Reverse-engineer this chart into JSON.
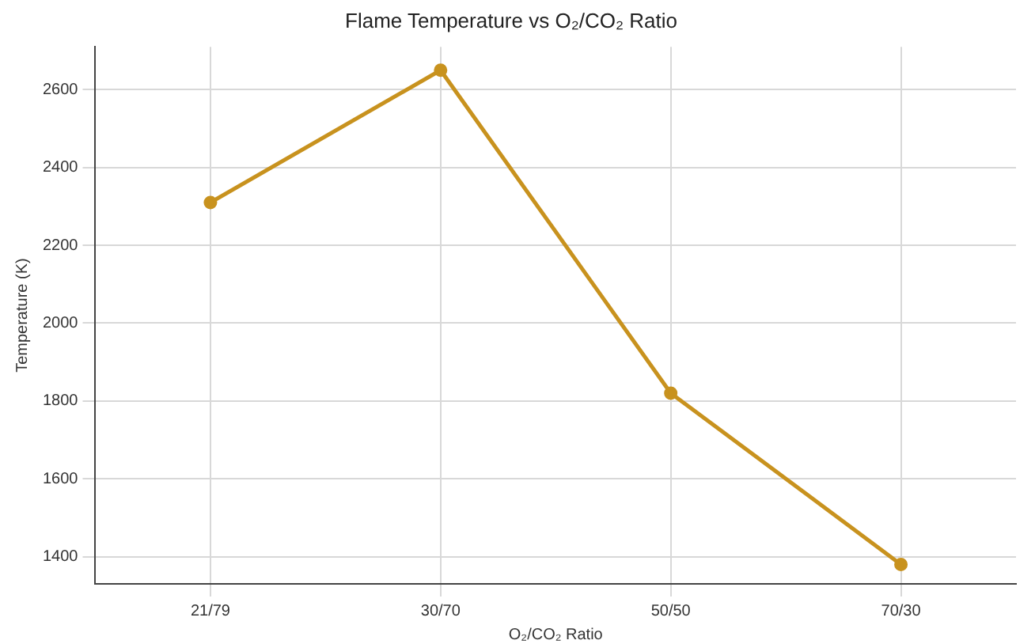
{
  "chart_data": {
    "type": "line",
    "title": "Flame Temperature vs O₂/CO₂ Ratio",
    "xlabel": "O₂/CO₂ Ratio",
    "ylabel": "Temperature (K)",
    "categories": [
      "21/79",
      "30/70",
      "50/50",
      "70/30"
    ],
    "series": [
      {
        "color": "#c8921e",
        "values": [
          2310,
          2650,
          1820,
          1380
        ]
      }
    ],
    "ylim": [
      1330,
      2710
    ],
    "yticks": [
      1400,
      1600,
      1800,
      2000,
      2200,
      2400,
      2600
    ],
    "grid": true,
    "marker": "circle",
    "line_style": "solid"
  }
}
